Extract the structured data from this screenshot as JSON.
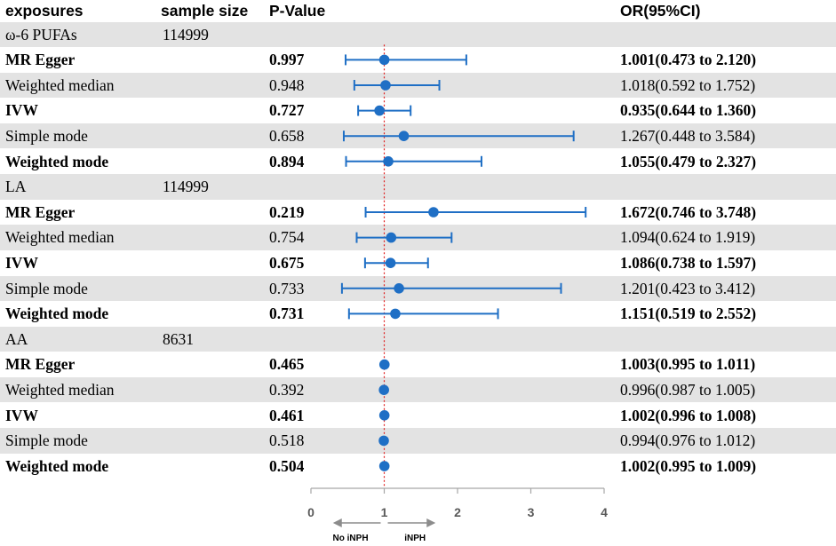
{
  "headers": {
    "exposures": "exposures",
    "sample_size": "sample size",
    "p_value": "P-Value",
    "or_ci": "OR(95%CI)"
  },
  "rows": [
    {
      "type": "group",
      "label": "ω-6 PUFAs",
      "size": "114999",
      "shaded": true
    },
    {
      "type": "method",
      "label": "MR Egger",
      "p": "0.997",
      "or_text": "1.001(0.473 to 2.120)",
      "or": 1.001,
      "lo": 0.473,
      "hi": 2.12,
      "bold": true,
      "shaded": false
    },
    {
      "type": "method",
      "label": "Weighted median",
      "p": "0.948",
      "or_text": "1.018(0.592 to 1.752)",
      "or": 1.018,
      "lo": 0.592,
      "hi": 1.752,
      "bold": false,
      "shaded": true
    },
    {
      "type": "method",
      "label": "IVW",
      "p": "0.727",
      "or_text": "0.935(0.644 to 1.360)",
      "or": 0.935,
      "lo": 0.644,
      "hi": 1.36,
      "bold": true,
      "shaded": false
    },
    {
      "type": "method",
      "label": "Simple mode",
      "p": "0.658",
      "or_text": "1.267(0.448 to 3.584)",
      "or": 1.267,
      "lo": 0.448,
      "hi": 3.584,
      "bold": false,
      "shaded": true
    },
    {
      "type": "method",
      "label": "Weighted mode",
      "p": "0.894",
      "or_text": "1.055(0.479 to 2.327)",
      "or": 1.055,
      "lo": 0.479,
      "hi": 2.327,
      "bold": true,
      "shaded": false
    },
    {
      "type": "group",
      "label": "LA",
      "size": "114999",
      "shaded": true
    },
    {
      "type": "method",
      "label": "MR Egger",
      "p": "0.219",
      "or_text": "1.672(0.746 to 3.748)",
      "or": 1.672,
      "lo": 0.746,
      "hi": 3.748,
      "bold": true,
      "shaded": false
    },
    {
      "type": "method",
      "label": "Weighted median",
      "p": "0.754",
      "or_text": "1.094(0.624 to 1.919)",
      "or": 1.094,
      "lo": 0.624,
      "hi": 1.919,
      "bold": false,
      "shaded": true
    },
    {
      "type": "method",
      "label": "IVW",
      "p": "0.675",
      "or_text": "1.086(0.738 to 1.597)",
      "or": 1.086,
      "lo": 0.738,
      "hi": 1.597,
      "bold": true,
      "shaded": false
    },
    {
      "type": "method",
      "label": "Simple mode",
      "p": "0.733",
      "or_text": "1.201(0.423 to 3.412)",
      "or": 1.201,
      "lo": 0.423,
      "hi": 3.412,
      "bold": false,
      "shaded": true
    },
    {
      "type": "method",
      "label": "Weighted mode",
      "p": "0.731",
      "or_text": "1.151(0.519 to 2.552)",
      "or": 1.151,
      "lo": 0.519,
      "hi": 2.552,
      "bold": true,
      "shaded": false
    },
    {
      "type": "group",
      "label": "AA",
      "size": "8631",
      "shaded": true
    },
    {
      "type": "method",
      "label": "MR Egger",
      "p": "0.465",
      "or_text": "1.003(0.995 to 1.011)",
      "or": 1.003,
      "lo": 0.995,
      "hi": 1.011,
      "bold": true,
      "shaded": false
    },
    {
      "type": "method",
      "label": "Weighted median",
      "p": "0.392",
      "or_text": "0.996(0.987 to 1.005)",
      "or": 0.996,
      "lo": 0.987,
      "hi": 1.005,
      "bold": false,
      "shaded": true
    },
    {
      "type": "method",
      "label": "IVW",
      "p": "0.461",
      "or_text": "1.002(0.996 to 1.008)",
      "or": 1.002,
      "lo": 0.996,
      "hi": 1.008,
      "bold": true,
      "shaded": false
    },
    {
      "type": "method",
      "label": "Simple mode",
      "p": "0.518",
      "or_text": "0.994(0.976 to 1.012)",
      "or": 0.994,
      "lo": 0.976,
      "hi": 1.012,
      "bold": false,
      "shaded": true
    },
    {
      "type": "method",
      "label": "Weighted mode",
      "p": "0.504",
      "or_text": "1.002(0.995 to 1.009)",
      "or": 1.002,
      "lo": 0.995,
      "hi": 1.009,
      "bold": true,
      "shaded": false
    }
  ],
  "chart_data": {
    "type": "forest",
    "xlim": [
      0,
      4
    ],
    "x_ticks": [
      0,
      1,
      2,
      3,
      4
    ],
    "x_tick_labels": [
      "0",
      "1",
      "2",
      "3",
      "4"
    ],
    "reference_line": 1,
    "direction_labels": {
      "left": "No  iNPH",
      "right": "iNPH"
    },
    "colors": {
      "marker": "#1f6fc5",
      "reference": "#e02020",
      "axis": "#a6a6a6"
    }
  }
}
